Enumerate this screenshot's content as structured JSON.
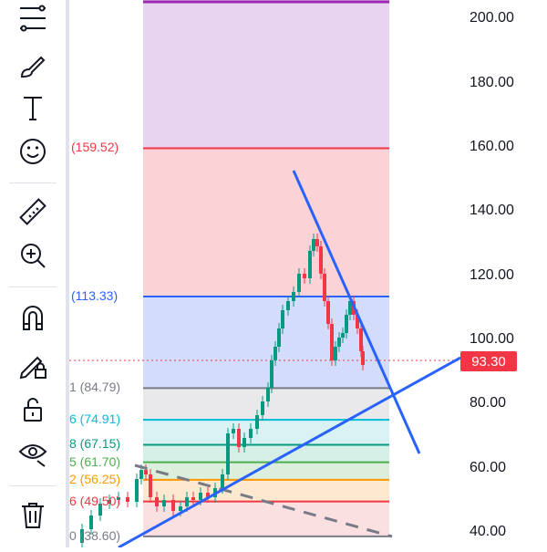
{
  "toolbar": {
    "tools": [
      {
        "name": "fib-retracement-icon"
      },
      {
        "name": "brush-icon"
      },
      {
        "name": "text-icon"
      },
      {
        "name": "emoji-icon"
      },
      {
        "name": "ruler-icon"
      },
      {
        "name": "zoom-in-icon"
      },
      {
        "name": "magnet-icon"
      },
      {
        "name": "lock-drawing-icon"
      },
      {
        "name": "unlock-icon"
      },
      {
        "name": "eye-icon"
      },
      {
        "name": "trash-icon"
      }
    ]
  },
  "price_axis": {
    "ticks": [
      "200.00",
      "180.00",
      "160.00",
      "140.00",
      "120.00",
      "100.00",
      "80.00",
      "60.00",
      "40.00"
    ],
    "current_price": "93.30",
    "current_price_color": "#f23645"
  },
  "fib_levels": [
    {
      "label": "(159.52)",
      "price": 159.52,
      "color": "#f23645"
    },
    {
      "label": "(113.33)",
      "price": 113.33,
      "color": "#2962ff"
    },
    {
      "label": "1 (84.79)",
      "price": 84.79,
      "color": "#787b86"
    },
    {
      "label": "6 (74.91)",
      "price": 74.91,
      "color": "#00bcd4"
    },
    {
      "label": "8 (67.15)",
      "price": 67.15,
      "color": "#089981"
    },
    {
      "label": "5 (61.70)",
      "price": 61.7,
      "color": "#4caf50"
    },
    {
      "label": "2 (56.25)",
      "price": 56.25,
      "color": "#ff9800"
    },
    {
      "label": "6 (49.50)",
      "price": 49.5,
      "color": "#f23645"
    },
    {
      "label": "0 (38.60)",
      "price": 38.6,
      "color": "#787b86"
    }
  ],
  "colors": {
    "purple_zone": "#e6d4f0",
    "purple_line": "#9c27b0",
    "red_zone": "#fbd3d6",
    "blue_zone": "#d3ddfb",
    "trendline": "#2962ff",
    "candle_up": "#089981",
    "candle_down": "#f23645"
  }
}
